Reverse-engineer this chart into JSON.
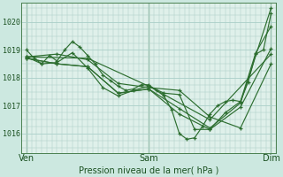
{
  "background_color": "#cce8e0",
  "plot_bg_color": "#dff0ea",
  "grid_color": "#aacfc8",
  "line_color": "#2d6e30",
  "marker_color": "#2d6e30",
  "xlabel": "Pression niveau de la mer( hPa )",
  "xtick_labels": [
    "Ven",
    "Sam",
    "Dim"
  ],
  "xtick_positions": [
    0,
    48,
    96
  ],
  "xlim": [
    -2,
    98
  ],
  "ylim": [
    1015.3,
    1020.7
  ],
  "ytick_values": [
    1016,
    1017,
    1018,
    1019,
    1020
  ],
  "series": [
    {
      "x": [
        0,
        3,
        6,
        9,
        12,
        15,
        18,
        21,
        24,
        27,
        30,
        33,
        36,
        39,
        42,
        45,
        48,
        51,
        54,
        57,
        60,
        63,
        66,
        69,
        72,
        75,
        78,
        81,
        84,
        87,
        90,
        93,
        96
      ],
      "y": [
        1019.0,
        1018.7,
        1018.5,
        1018.8,
        1018.6,
        1019.0,
        1019.3,
        1019.1,
        1018.8,
        1018.5,
        1018.1,
        1017.9,
        1017.7,
        1017.55,
        1017.6,
        1017.75,
        1017.75,
        1017.55,
        1017.35,
        1016.85,
        1016.0,
        1015.8,
        1015.85,
        1016.25,
        1016.7,
        1017.0,
        1017.15,
        1017.2,
        1017.15,
        1017.85,
        1018.85,
        1019.0,
        1020.3
      ]
    },
    {
      "x": [
        0,
        6,
        12,
        18,
        24,
        30,
        36,
        42,
        48,
        54,
        60,
        66,
        72,
        78,
        84,
        90,
        96
      ],
      "y": [
        1018.75,
        1018.5,
        1018.55,
        1018.9,
        1018.35,
        1017.65,
        1017.35,
        1017.55,
        1017.7,
        1017.45,
        1017.4,
        1016.15,
        1016.15,
        1016.75,
        1017.15,
        1018.9,
        1019.85
      ]
    },
    {
      "x": [
        0,
        12,
        24,
        36,
        48,
        60,
        72,
        84,
        96
      ],
      "y": [
        1018.7,
        1018.5,
        1018.4,
        1017.45,
        1017.6,
        1016.9,
        1016.2,
        1017.1,
        1020.5
      ]
    },
    {
      "x": [
        0,
        12,
        24,
        36,
        48,
        60,
        72,
        84,
        96
      ],
      "y": [
        1018.7,
        1018.5,
        1018.4,
        1017.45,
        1017.6,
        1016.7,
        1016.15,
        1016.95,
        1019.05
      ]
    },
    {
      "x": [
        0,
        12,
        24,
        36,
        48,
        60,
        72,
        84,
        96
      ],
      "y": [
        1018.75,
        1018.85,
        1018.65,
        1017.8,
        1017.65,
        1017.55,
        1016.6,
        1016.2,
        1018.5
      ]
    },
    {
      "x": [
        0,
        24,
        48,
        72,
        96
      ],
      "y": [
        1018.75,
        1018.7,
        1017.7,
        1016.5,
        1018.85
      ]
    }
  ]
}
